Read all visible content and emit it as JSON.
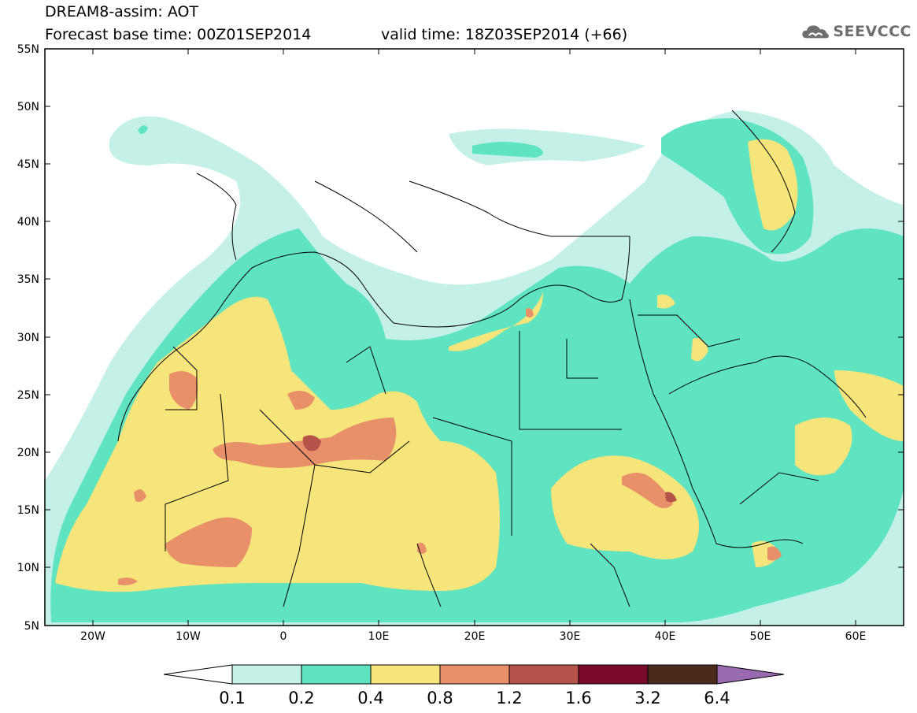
{
  "header": {
    "title_line1": "DREAM8-assim: AOT",
    "title_line2": "Forecast base time: 00Z01SEP2014",
    "valid_time": "valid time: 18Z03SEP2014 (+66)",
    "logo_text": "SEEVCCC",
    "logo_icon": "cloud-icon"
  },
  "map": {
    "lon_range": [
      -25,
      65
    ],
    "lat_range": [
      5,
      55
    ],
    "lat_labels": [
      "55N",
      "50N",
      "45N",
      "40N",
      "35N",
      "30N",
      "25N",
      "20N",
      "15N",
      "10N",
      "5N"
    ],
    "lon_labels": [
      "20W",
      "10W",
      "0",
      "10E",
      "20E",
      "30E",
      "40E",
      "50E",
      "60E"
    ]
  },
  "colorbar": {
    "levels": [
      "0.1",
      "0.2",
      "0.4",
      "0.8",
      "1.2",
      "1.6",
      "3.2",
      "6.4"
    ],
    "colors": [
      "#ffffff",
      "#c4f0e8",
      "#5fe3c0",
      "#f5e57a",
      "#e8906a",
      "#b5524a",
      "#7a0a2a",
      "#4a2a1a",
      "#9a6ab0"
    ]
  }
}
